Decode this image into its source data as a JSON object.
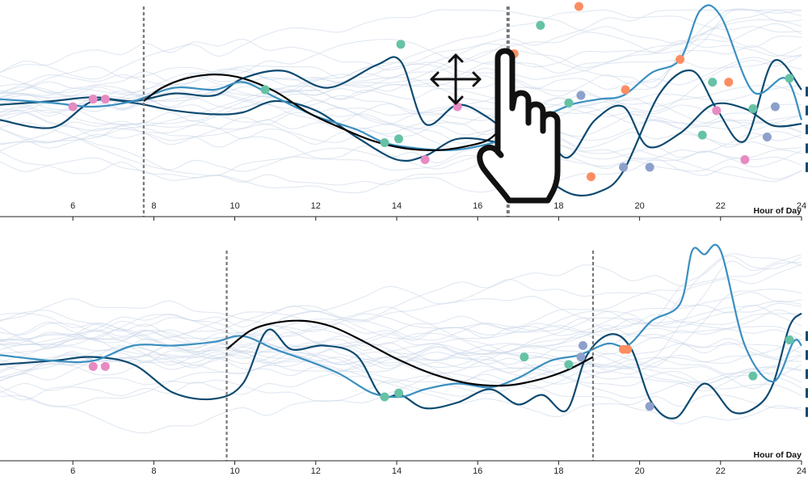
{
  "colors": {
    "background_line": "#c8d6e8",
    "dark_line": "#0d4a70",
    "mid_line": "#3a8fc0",
    "fit_line": "#000000",
    "marker_green": "#66c2a5",
    "marker_orange": "#fc8d62",
    "marker_purple": "#8da0cb",
    "marker_pink": "#e78ac3",
    "dashed_line": "#777777"
  },
  "icons": {
    "hand": "hand-pointer-icon",
    "move": "move-arrows-icon"
  },
  "chart_data": [
    {
      "type": "line",
      "xlabel": "Hour of Day",
      "xlim": [
        4.2,
        24
      ],
      "xticks": [
        6,
        8,
        10,
        12,
        14,
        16,
        18,
        20,
        22,
        24
      ],
      "brush": [
        7.75,
        16.75
      ],
      "series": [
        {
          "style": "dark",
          "x": [
            4.2,
            5.5,
            6.5,
            7.5,
            8.5,
            9.5,
            10.2,
            11.2,
            12.3,
            13.5,
            14.1,
            14.7,
            15.5,
            16.2,
            16.8,
            17.5,
            18.3,
            19.0,
            19.6,
            20.5,
            21.3,
            21.9,
            22.6,
            23.3,
            24.0
          ],
          "y": [
            0.52,
            0.5,
            0.48,
            0.5,
            0.46,
            0.47,
            0.38,
            0.34,
            0.43,
            0.31,
            0.29,
            0.62,
            0.52,
            0.58,
            0.69,
            0.87,
            0.99,
            0.98,
            0.87,
            0.46,
            0.34,
            0.54,
            0.71,
            0.29,
            0.44
          ]
        },
        {
          "style": "dark",
          "x": [
            4.2,
            5.5,
            6.5,
            7.5,
            8.5,
            9.5,
            10.2,
            11.0,
            12.0,
            13.0,
            14.0,
            14.7,
            15.5,
            16.5,
            17.0,
            17.5,
            18.2,
            18.9,
            19.6,
            20.2,
            21.0,
            21.8,
            22.6,
            23.3,
            24.0
          ],
          "y": [
            0.6,
            0.64,
            0.5,
            0.51,
            0.55,
            0.57,
            0.56,
            0.5,
            0.55,
            0.69,
            0.81,
            0.79,
            0.7,
            0.72,
            0.78,
            0.63,
            0.8,
            0.6,
            0.53,
            0.74,
            0.67,
            0.52,
            0.54,
            0.63,
            0.62
          ]
        },
        {
          "style": "mid",
          "x": [
            4.2,
            5.5,
            6.5,
            7.5,
            8.5,
            9.5,
            10.2,
            11.0,
            12.0,
            13.0,
            13.7,
            14.5,
            15.3,
            16.0,
            16.8,
            17.5,
            18.3,
            19.0,
            19.6,
            20.3,
            21.0,
            21.5,
            22.0,
            22.8,
            23.6,
            24.0
          ],
          "y": [
            0.49,
            0.51,
            0.53,
            0.5,
            0.43,
            0.44,
            0.4,
            0.48,
            0.58,
            0.65,
            0.72,
            0.75,
            0.76,
            0.74,
            0.69,
            0.6,
            0.52,
            0.49,
            0.47,
            0.35,
            0.28,
            0.02,
            0.05,
            0.45,
            0.38,
            0.6
          ]
        },
        {
          "style": "fit",
          "x": [
            7.75,
            8.2,
            8.8,
            9.5,
            10.2,
            11.0,
            11.8,
            12.6,
            13.4,
            14.2,
            15.0,
            15.7,
            16.3,
            16.75
          ],
          "y": [
            0.5,
            0.43,
            0.38,
            0.36,
            0.38,
            0.45,
            0.56,
            0.64,
            0.71,
            0.75,
            0.76,
            0.74,
            0.7,
            0.6
          ]
        }
      ],
      "markers": [
        {
          "x": 6.0,
          "y": 0.53,
          "color": "pink"
        },
        {
          "x": 6.5,
          "y": 0.49,
          "color": "pink"
        },
        {
          "x": 6.8,
          "y": 0.49,
          "color": "pink"
        },
        {
          "x": 10.75,
          "y": 0.44,
          "color": "green"
        },
        {
          "x": 13.7,
          "y": 0.72,
          "color": "green"
        },
        {
          "x": 14.05,
          "y": 0.7,
          "color": "green"
        },
        {
          "x": 14.1,
          "y": 0.2,
          "color": "green"
        },
        {
          "x": 14.7,
          "y": 0.81,
          "color": "pink"
        },
        {
          "x": 15.5,
          "y": 0.53,
          "color": "pink"
        },
        {
          "x": 16.9,
          "y": 0.25,
          "color": "orange"
        },
        {
          "x": 17.15,
          "y": 0.47,
          "color": "green"
        },
        {
          "x": 17.55,
          "y": 0.1,
          "color": "green"
        },
        {
          "x": 18.25,
          "y": 0.51,
          "color": "green"
        },
        {
          "x": 18.5,
          "y": 0.0,
          "color": "orange"
        },
        {
          "x": 18.55,
          "y": 0.47,
          "color": "purple"
        },
        {
          "x": 18.8,
          "y": 0.9,
          "color": "orange"
        },
        {
          "x": 19.6,
          "y": 0.85,
          "color": "purple"
        },
        {
          "x": 19.65,
          "y": 0.44,
          "color": "orange"
        },
        {
          "x": 20.25,
          "y": 0.85,
          "color": "purple"
        },
        {
          "x": 21.0,
          "y": 0.28,
          "color": "orange"
        },
        {
          "x": 21.55,
          "y": 0.68,
          "color": "green"
        },
        {
          "x": 21.8,
          "y": 0.4,
          "color": "green"
        },
        {
          "x": 21.9,
          "y": 0.55,
          "color": "pink"
        },
        {
          "x": 22.2,
          "y": 0.4,
          "color": "orange"
        },
        {
          "x": 22.6,
          "y": 0.81,
          "color": "pink"
        },
        {
          "x": 22.8,
          "y": 0.54,
          "color": "green"
        },
        {
          "x": 23.15,
          "y": 0.69,
          "color": "purple"
        },
        {
          "x": 23.35,
          "y": 0.53,
          "color": "purple"
        },
        {
          "x": 23.7,
          "y": 0.38,
          "color": "green"
        }
      ]
    },
    {
      "type": "line",
      "xlabel": "Hour of Day",
      "xlim": [
        4.2,
        24
      ],
      "xticks": [
        6,
        8,
        10,
        12,
        14,
        16,
        18,
        20,
        22,
        24
      ],
      "brush": [
        9.8,
        18.85
      ],
      "series": [
        {
          "style": "dark",
          "x": [
            4.2,
            5.5,
            6.5,
            7.5,
            8.5,
            9.5,
            10.2,
            10.8,
            11.4,
            12.2,
            13.0,
            13.6,
            14.1,
            14.7,
            15.5,
            16.3,
            17.0,
            17.6,
            18.2,
            18.7,
            19.3,
            19.8,
            20.3,
            20.9,
            21.6,
            22.3,
            22.9,
            23.3,
            23.7,
            24.0
          ],
          "y": [
            0.6,
            0.58,
            0.56,
            0.6,
            0.75,
            0.78,
            0.7,
            0.42,
            0.52,
            0.5,
            0.55,
            0.76,
            0.76,
            0.83,
            0.8,
            0.73,
            0.81,
            0.76,
            0.84,
            0.55,
            0.44,
            0.52,
            0.8,
            0.88,
            0.7,
            0.85,
            0.82,
            0.7,
            0.4,
            0.33
          ]
        },
        {
          "style": "mid",
          "x": [
            4.2,
            5.5,
            6.5,
            7.5,
            8.5,
            9.5,
            10.2,
            11.0,
            11.8,
            12.6,
            13.4,
            14.1,
            14.7,
            15.5,
            16.3,
            17.0,
            17.8,
            18.5,
            19.2,
            19.7,
            20.3,
            21.0,
            21.3,
            21.6,
            22.0,
            22.6,
            23.3,
            23.8,
            24.0
          ],
          "y": [
            0.55,
            0.58,
            0.58,
            0.5,
            0.5,
            0.48,
            0.45,
            0.52,
            0.58,
            0.65,
            0.75,
            0.77,
            0.73,
            0.7,
            0.72,
            0.67,
            0.58,
            0.55,
            0.49,
            0.5,
            0.37,
            0.28,
            0.0,
            0.02,
            0.0,
            0.5,
            0.69,
            0.48,
            0.5
          ]
        },
        {
          "style": "fit",
          "x": [
            9.8,
            10.4,
            11.0,
            11.7,
            12.4,
            13.2,
            14.0,
            14.9,
            15.8,
            16.7,
            17.5,
            18.2,
            18.85
          ],
          "y": [
            0.52,
            0.42,
            0.38,
            0.37,
            0.4,
            0.48,
            0.57,
            0.65,
            0.7,
            0.71,
            0.68,
            0.63,
            0.56
          ]
        }
      ],
      "markers": [
        {
          "x": 6.5,
          "y": 0.61,
          "color": "pink"
        },
        {
          "x": 6.8,
          "y": 0.61,
          "color": "pink"
        },
        {
          "x": 13.7,
          "y": 0.77,
          "color": "green"
        },
        {
          "x": 14.05,
          "y": 0.75,
          "color": "green"
        },
        {
          "x": 17.15,
          "y": 0.56,
          "color": "green"
        },
        {
          "x": 18.25,
          "y": 0.6,
          "color": "green"
        },
        {
          "x": 18.55,
          "y": 0.56,
          "color": "purple"
        },
        {
          "x": 18.6,
          "y": 0.5,
          "color": "purple"
        },
        {
          "x": 19.6,
          "y": 0.52,
          "color": "orange"
        },
        {
          "x": 19.7,
          "y": 0.52,
          "color": "orange"
        },
        {
          "x": 20.25,
          "y": 0.82,
          "color": "purple"
        },
        {
          "x": 22.8,
          "y": 0.66,
          "color": "green"
        },
        {
          "x": 23.7,
          "y": 0.47,
          "color": "green"
        }
      ]
    }
  ]
}
